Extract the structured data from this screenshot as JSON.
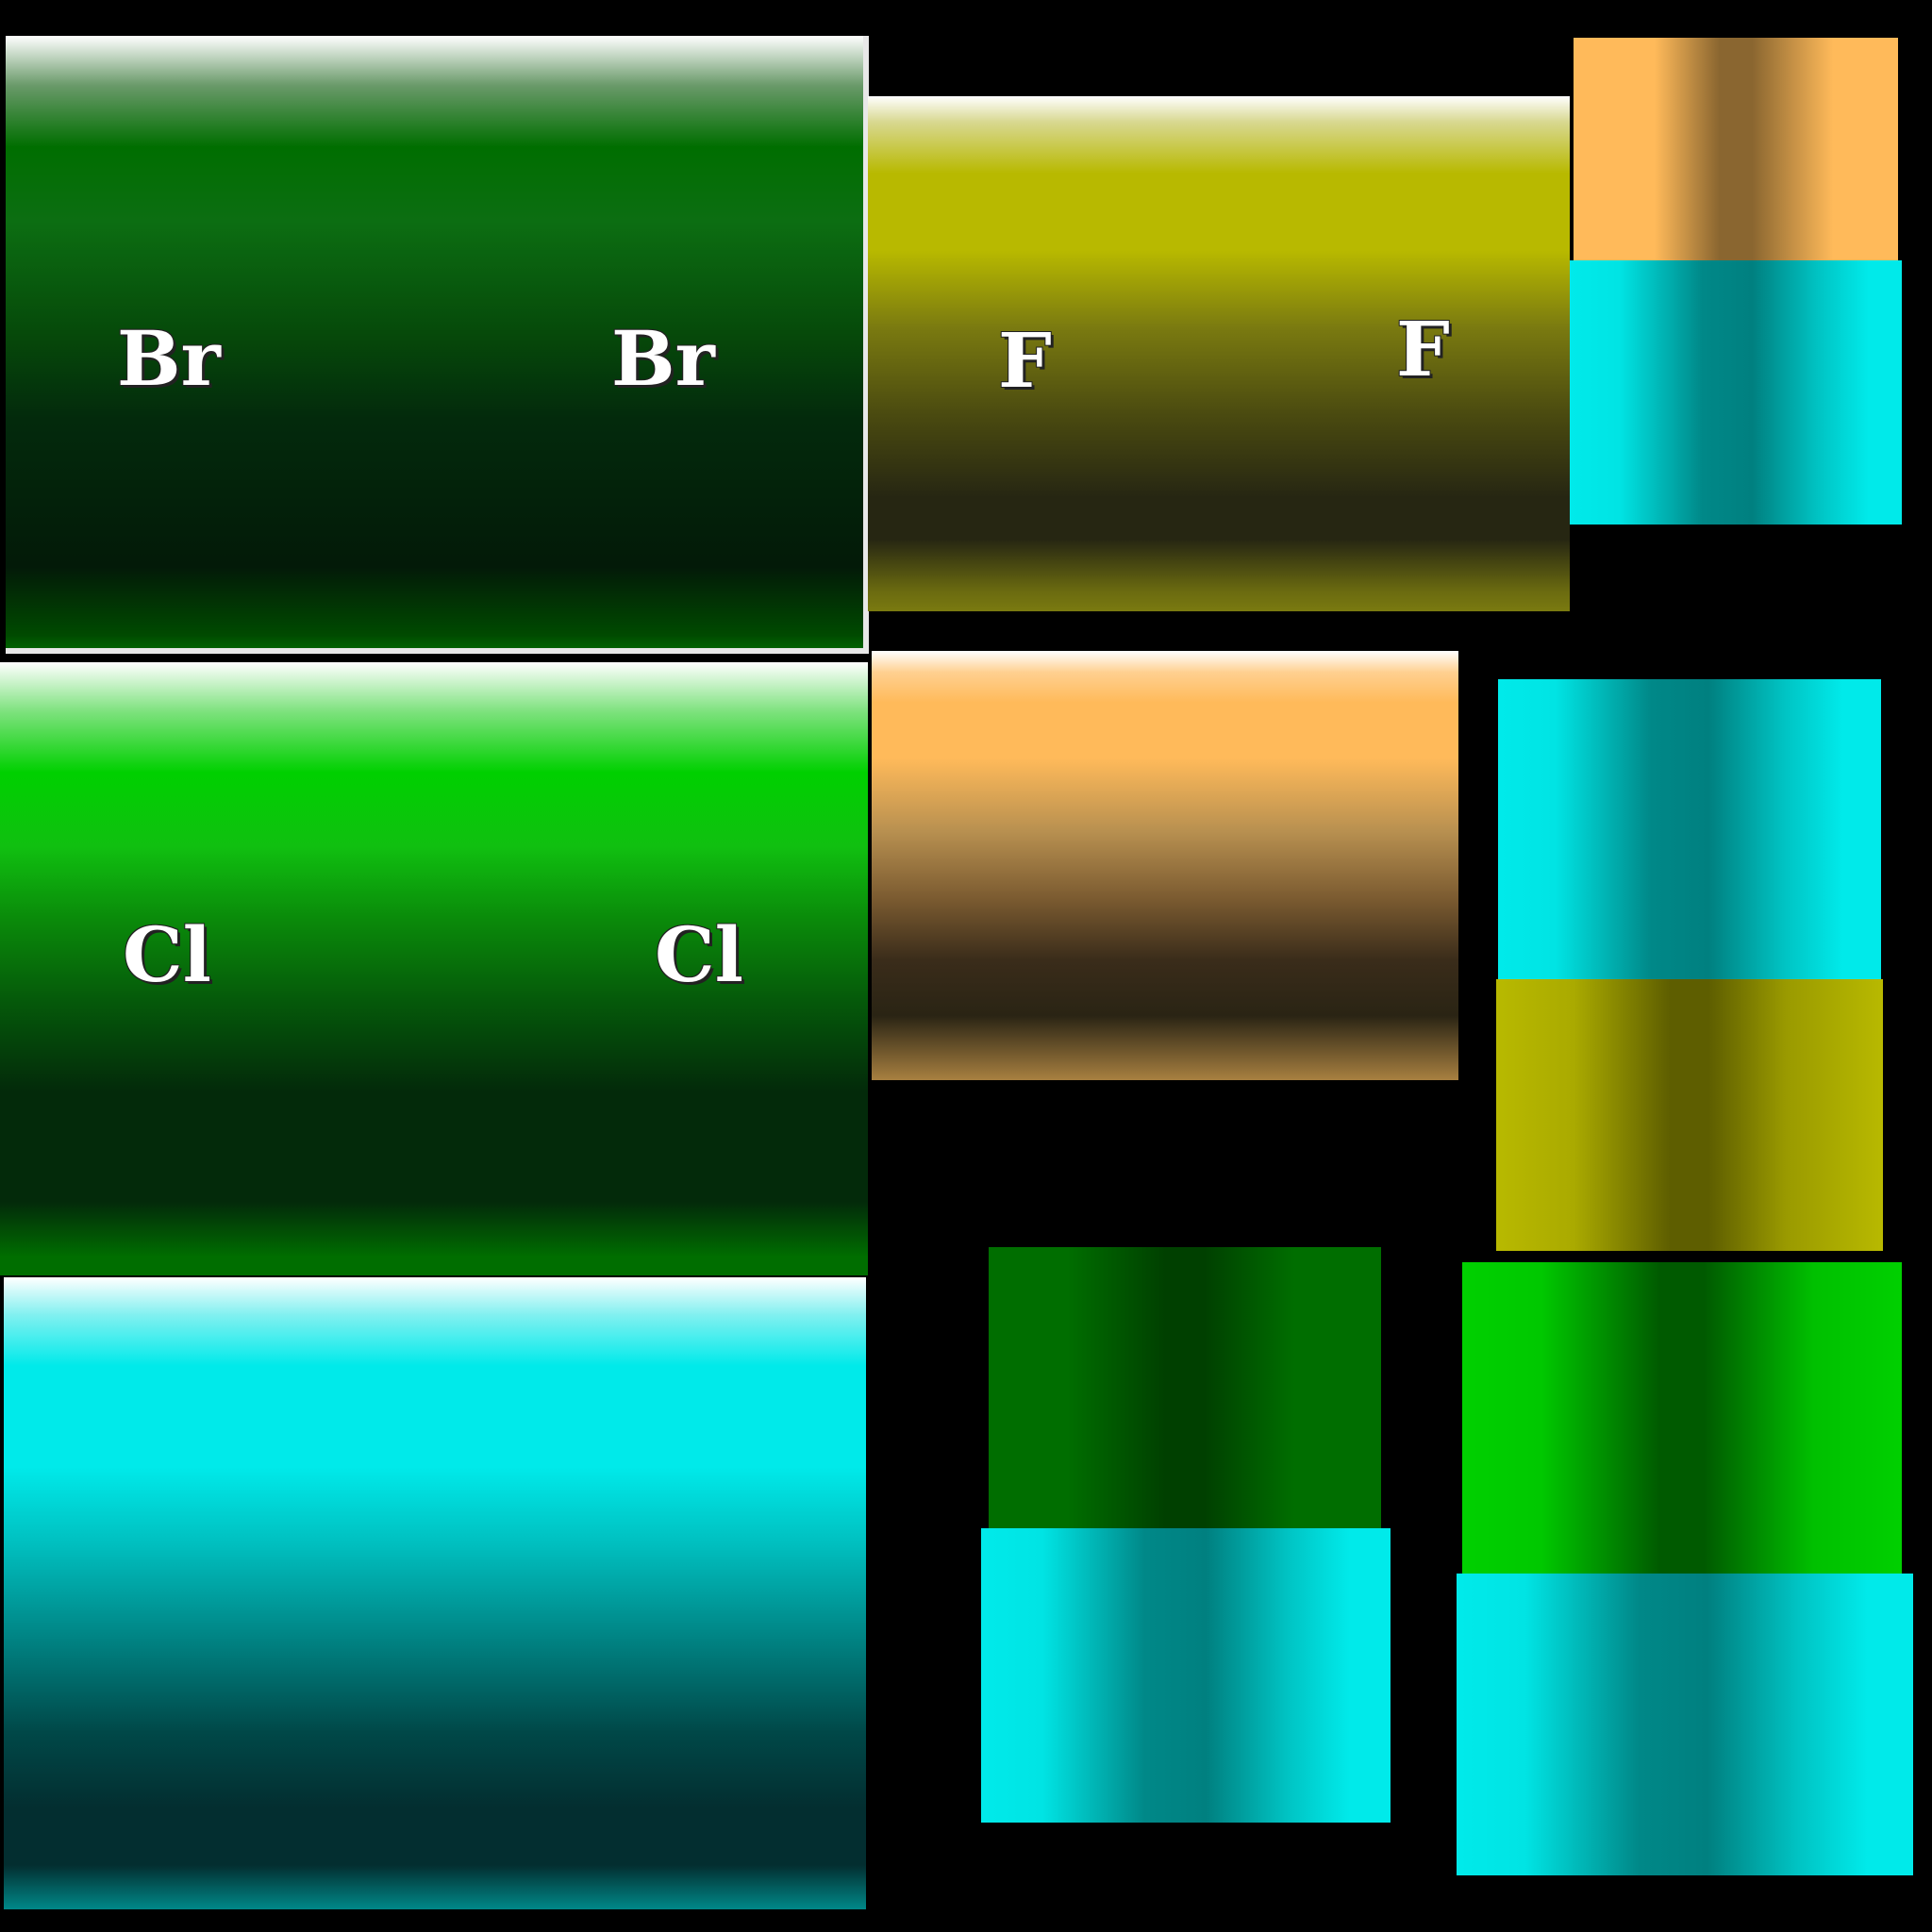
{
  "tiles": {
    "bromine": {
      "label_left": "Br",
      "label_right": "Br",
      "color": "#006e00"
    },
    "fluorine": {
      "label_left": "F",
      "label_right": "F",
      "color": "#b8b900"
    },
    "chlorine": {
      "label_left": "Cl",
      "label_right": "Cl",
      "color": "#00d000"
    },
    "cyan_block": {
      "color": "#00eaea"
    },
    "orange_block": {
      "color": "#ffba5a"
    }
  },
  "small_stacks": [
    {
      "top_color": "#ffba5a",
      "bottom_color": "#00eaea"
    },
    {
      "top_color": "#00eaea",
      "bottom_color": "#b8b900"
    },
    {
      "top_color": "#006e00",
      "bottom_color": "#00eaea"
    },
    {
      "top_color": "#00d000",
      "bottom_color": "#00eaea"
    }
  ],
  "background": "#000000"
}
